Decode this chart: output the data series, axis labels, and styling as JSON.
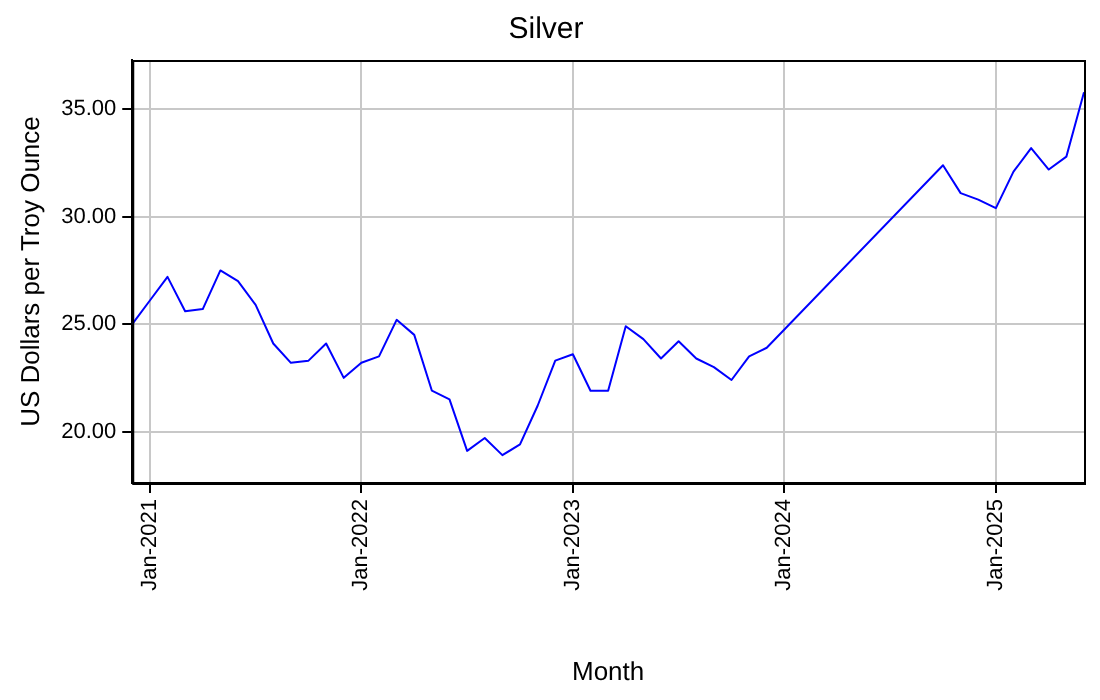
{
  "chart_data": {
    "type": "line",
    "title": "Silver",
    "xlabel": "Month",
    "ylabel": "US Dollars per Troy Ounce",
    "x": [
      "2020-12",
      "2021-01",
      "2021-02",
      "2021-03",
      "2021-04",
      "2021-05",
      "2021-06",
      "2021-07",
      "2021-08",
      "2021-09",
      "2021-10",
      "2021-11",
      "2021-12",
      "2022-01",
      "2022-02",
      "2022-03",
      "2022-04",
      "2022-05",
      "2022-06",
      "2022-07",
      "2022-08",
      "2022-09",
      "2022-10",
      "2022-11",
      "2022-12",
      "2023-01",
      "2023-02",
      "2023-03",
      "2023-04",
      "2023-05",
      "2023-06",
      "2023-07",
      "2023-08",
      "2023-09",
      "2023-10",
      "2023-11",
      "2023-12",
      "2024-10",
      "2024-11",
      "2024-12",
      "2025-01",
      "2025-02",
      "2025-03",
      "2025-04",
      "2025-05",
      "2025-06"
    ],
    "series": [
      {
        "color": "#0000ff",
        "values": [
          25.0,
          26.1,
          27.2,
          25.6,
          25.7,
          27.5,
          27.0,
          25.9,
          24.1,
          23.2,
          23.3,
          24.1,
          22.5,
          23.2,
          23.5,
          25.2,
          24.5,
          21.9,
          21.5,
          19.1,
          19.7,
          18.9,
          19.4,
          21.2,
          23.3,
          23.6,
          21.9,
          21.9,
          24.9,
          24.3,
          23.4,
          24.2,
          23.4,
          23.0,
          22.4,
          23.5,
          23.9,
          32.4,
          31.1,
          30.8,
          30.4,
          32.1,
          33.2,
          32.2,
          32.8,
          35.8
        ]
      }
    ],
    "xlim": [
      "2020-12",
      "2025-06"
    ],
    "xticks": [
      {
        "value": "2021-01",
        "label": "Jan-2021"
      },
      {
        "value": "2022-01",
        "label": "Jan-2022"
      },
      {
        "value": "2023-01",
        "label": "Jan-2023"
      },
      {
        "value": "2024-01",
        "label": "Jan-2024"
      },
      {
        "value": "2025-01",
        "label": "Jan-2025"
      }
    ],
    "ylim": [
      17.6,
      37.3
    ],
    "yticks": [
      {
        "value": 20,
        "label": "20.00"
      },
      {
        "value": 25,
        "label": "25.00"
      },
      {
        "value": 30,
        "label": "30.00"
      },
      {
        "value": 35,
        "label": "35.00"
      }
    ],
    "grid": true,
    "legend": false,
    "marker": "none",
    "line_style": "solid"
  }
}
